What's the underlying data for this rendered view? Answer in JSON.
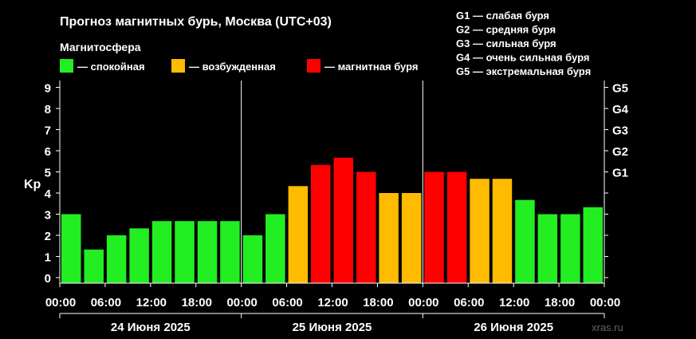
{
  "chart_data": {
    "type": "bar",
    "title": "Прогноз магнитных бурь, Москва (UTC+03)",
    "subtitle": "Магнитосфера",
    "ylabel": "Kp",
    "ylim": [
      0,
      9
    ],
    "y_ticks": [
      "0",
      "1",
      "2",
      "3",
      "4",
      "5",
      "6",
      "7",
      "8",
      "9"
    ],
    "g_scale_ticks": [
      {
        "label": "G1",
        "kp": 5
      },
      {
        "label": "G2",
        "kp": 6
      },
      {
        "label": "G3",
        "kp": 7
      },
      {
        "label": "G4",
        "kp": 8
      },
      {
        "label": "G5",
        "kp": 9
      }
    ],
    "legend_magnetosphere": [
      {
        "label": "— спокойная",
        "color": "#22ee22"
      },
      {
        "label": "— возбужденная",
        "color": "#ffbb00"
      },
      {
        "label": "— магнитная буря",
        "color": "#ff0000"
      }
    ],
    "legend_storms": [
      "G1 — слабая буря",
      "G2 — средняя буря",
      "G3 — сильная буря",
      "G4 — очень сильная буря",
      "G5 — экстремальная буря"
    ],
    "x_tick_labels": [
      "00:00",
      "06:00",
      "12:00",
      "18:00",
      "00:00",
      "06:00",
      "12:00",
      "18:00",
      "00:00",
      "06:00",
      "12:00",
      "18:00",
      "00:00"
    ],
    "days": [
      "24 Июня 2025",
      "25 Июня 2025",
      "26 Июня 2025"
    ],
    "values": [
      3.0,
      1.33,
      2.0,
      2.33,
      2.67,
      2.67,
      2.67,
      2.67,
      2.0,
      3.0,
      4.33,
      5.33,
      5.67,
      5.0,
      4.0,
      4.0,
      5.0,
      5.0,
      4.67,
      4.67,
      3.67,
      3.0,
      3.0,
      3.33
    ],
    "grid": false,
    "colors": {
      "quiet": "#22ee22",
      "active": "#ffbb00",
      "storm": "#ff0000",
      "background": "#000000",
      "axis": "#ffffff"
    }
  },
  "watermark": "xras.ru"
}
